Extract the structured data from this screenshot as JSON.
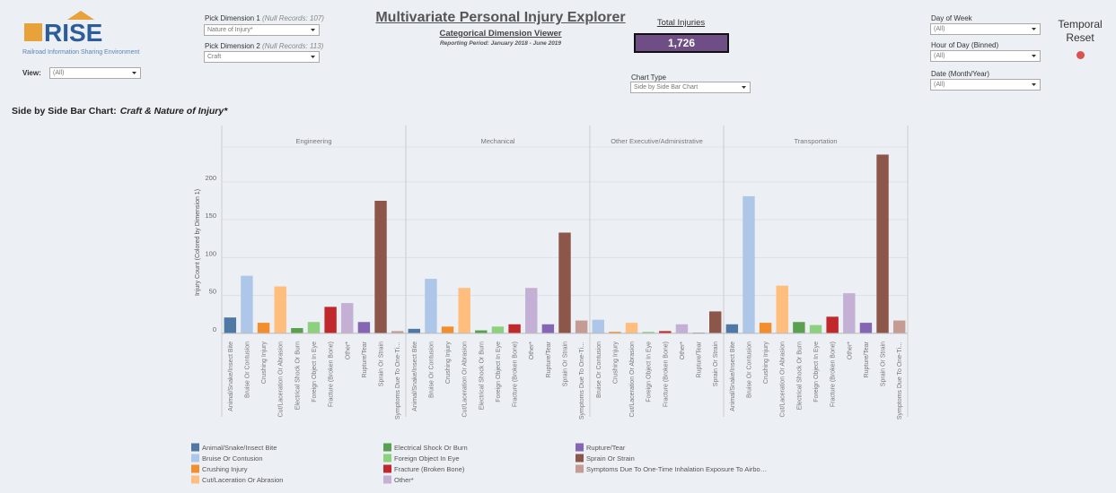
{
  "ui": {
    "logo": {
      "name": "RISE",
      "subtitle": "Railroad Information Sharing Environment"
    },
    "view": {
      "label": "View:",
      "value": "(All)"
    },
    "dimension1": {
      "label": "Pick Dimension 1",
      "note": "(Null Records: 107)",
      "value": "Nature of Injury*"
    },
    "dimension2": {
      "label": "Pick Dimension 2",
      "note": "(Null Records: 113)",
      "value": "Craft"
    },
    "title": "Multivariate Personal Injury Explorer",
    "subtitle": "Categorical Dimension Viewer",
    "period": "Reporting Period: January 2018 - June 2019",
    "total": {
      "label": "Total Injuries",
      "value": "1,726"
    },
    "chart_type": {
      "label": "Chart Type",
      "value": "Side by Side Bar Chart"
    },
    "day_of_week": {
      "label": "Day of Week",
      "value": "(All)"
    },
    "hour_of_day": {
      "label": "Hour of Day (Binned)",
      "value": "(All)"
    },
    "date": {
      "label": "Date (Month/Year)",
      "value": "(All)"
    },
    "reset": "Temporal Reset"
  },
  "chart_data": {
    "type": "bar",
    "title": "Side by Side Bar Chart:",
    "title_emphasis": "Craft & Nature of Injury*",
    "y_label": "Injury Count (Colored by Dimension 1)",
    "ylim": [
      -6,
      246
    ],
    "yticks": [
      0,
      50,
      100,
      150,
      200
    ],
    "grid": true,
    "panels": [
      {
        "name": "Engineering",
        "categories": [
          "Animal/Snake/Insect Bite",
          "Bruise Or Contusion",
          "Crushing Injury",
          "Cut/Laceration Or Abrasion",
          "Electrical Shock Or Burn",
          "Foreign Object In Eye",
          "Fracture (Broken Bone)",
          "Other*",
          "Rupture/Tear",
          "Sprain Or Strain",
          "Symptoms Due To One-Ti…"
        ],
        "values": [
          21,
          76,
          14,
          62,
          7,
          15,
          35,
          40,
          15,
          175,
          3
        ]
      },
      {
        "name": "Mechanical",
        "categories": [
          "Animal/Snake/Insect Bite",
          "Bruise Or Contusion",
          "Crushing Injury",
          "Cut/Laceration Or Abrasion",
          "Electrical Shock Or Burn",
          "Foreign Object In Eye",
          "Fracture (Broken Bone)",
          "Other*",
          "Rupture/Tear",
          "Sprain Or Strain",
          "Symptoms Due To One-Ti…"
        ],
        "values": [
          6,
          72,
          9,
          60,
          4,
          9,
          12,
          60,
          12,
          133,
          17
        ]
      },
      {
        "name": "Other Executive/Administrative",
        "categories": [
          "Bruise Or Contusion",
          "Crushing Injury",
          "Cut/Laceration Or Abrasion",
          "Foreign Object In Eye",
          "Fracture (Broken Bone)",
          "Other*",
          "Rupture/Tear",
          "Sprain Or Strain"
        ],
        "values": [
          18,
          2,
          14,
          2,
          3,
          12,
          1,
          29
        ]
      },
      {
        "name": "Transportation",
        "categories": [
          "Animal/Snake/Insect Bite",
          "Bruise Or Contusion",
          "Crushing Injury",
          "Cut/Laceration Or Abrasion",
          "Electrical Shock Or Burn",
          "Foreign Object In Eye",
          "Fracture (Broken Bone)",
          "Other*",
          "Rupture/Tear",
          "Sprain Or Strain",
          "Symptoms Due To One-Ti…"
        ],
        "values": [
          12,
          181,
          14,
          63,
          15,
          11,
          22,
          53,
          14,
          236,
          17
        ]
      }
    ],
    "legend": [
      {
        "name": "Animal/Snake/Insect Bite",
        "color": "#4e79a7"
      },
      {
        "name": "Bruise Or Contusion",
        "color": "#aec7e8"
      },
      {
        "name": "Crushing Injury",
        "color": "#f28e2b"
      },
      {
        "name": "Cut/Laceration Or Abrasion",
        "color": "#ffbe7d"
      },
      {
        "name": "Electrical Shock Or Burn",
        "color": "#59a14f"
      },
      {
        "name": "Foreign Object In Eye",
        "color": "#8cd17d"
      },
      {
        "name": "Fracture (Broken Bone)",
        "color": "#c0282b"
      },
      {
        "name": "Other*",
        "color": "#c5b0d5"
      },
      {
        "name": "Rupture/Tear",
        "color": "#8566b5"
      },
      {
        "name": "Sprain Or Strain",
        "color": "#8c564b"
      },
      {
        "name": "Symptoms Due To One-Time Inhalation Exposure To Airbo…",
        "color": "#c49c94"
      }
    ]
  }
}
